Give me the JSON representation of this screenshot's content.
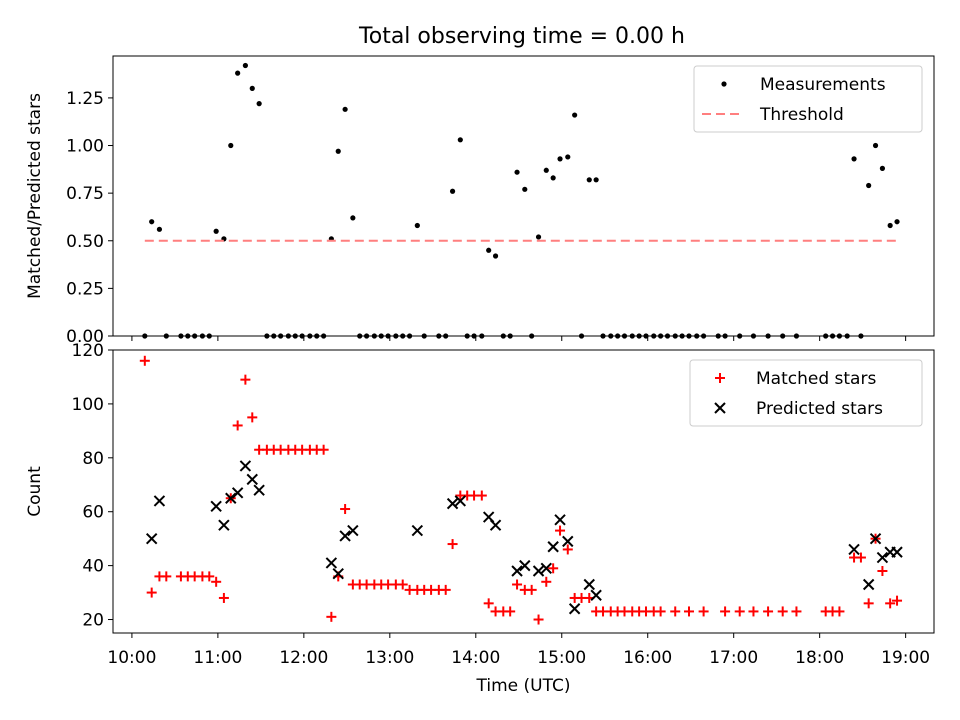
{
  "colors": {
    "matched": "#ff0000",
    "predicted": "#000000",
    "measurement": "#000000",
    "threshold": "#ff7f7f"
  },
  "chart_data": [
    {
      "type": "scatter",
      "title": "Total observing time = 0.00 h",
      "xlabel": "",
      "ylabel": "Matched/Predicted stars",
      "xlim": [
        9.78,
        19.33
      ],
      "ylim": [
        0,
        1.47
      ],
      "yticks": [
        0.0,
        0.25,
        0.5,
        0.75,
        1.0,
        1.25
      ],
      "ytick_labels": [
        "0.00",
        "0.25",
        "0.50",
        "0.75",
        "1.00",
        "1.25"
      ],
      "legend": {
        "placement": "upper right",
        "entries": [
          "Measurements",
          "Threshold"
        ]
      },
      "grid": false,
      "series": [
        {
          "name": "Measurements",
          "marker": "dot",
          "points": [
            [
              10.15,
              0
            ],
            [
              10.23,
              0.6
            ],
            [
              10.32,
              0.56
            ],
            [
              10.4,
              0
            ],
            [
              10.57,
              0
            ],
            [
              10.65,
              0
            ],
            [
              10.73,
              0
            ],
            [
              10.82,
              0
            ],
            [
              10.9,
              0
            ],
            [
              10.98,
              0.55
            ],
            [
              11.07,
              0.51
            ],
            [
              11.15,
              1.0
            ],
            [
              11.23,
              1.38
            ],
            [
              11.32,
              1.42
            ],
            [
              11.4,
              1.3
            ],
            [
              11.48,
              1.22
            ],
            [
              11.57,
              0
            ],
            [
              11.65,
              0
            ],
            [
              11.73,
              0
            ],
            [
              11.82,
              0
            ],
            [
              11.9,
              0
            ],
            [
              11.98,
              0
            ],
            [
              12.07,
              0
            ],
            [
              12.15,
              0
            ],
            [
              12.23,
              0
            ],
            [
              12.32,
              0.51
            ],
            [
              12.4,
              0.97
            ],
            [
              12.48,
              1.19
            ],
            [
              12.57,
              0.62
            ],
            [
              12.65,
              0
            ],
            [
              12.73,
              0
            ],
            [
              12.82,
              0
            ],
            [
              12.9,
              0
            ],
            [
              12.98,
              0
            ],
            [
              13.07,
              0
            ],
            [
              13.15,
              0
            ],
            [
              13.23,
              0
            ],
            [
              13.32,
              0.58
            ],
            [
              13.4,
              0
            ],
            [
              13.57,
              0
            ],
            [
              13.65,
              0
            ],
            [
              13.73,
              0.76
            ],
            [
              13.82,
              1.03
            ],
            [
              13.9,
              0
            ],
            [
              13.98,
              0
            ],
            [
              14.07,
              0
            ],
            [
              14.15,
              0.45
            ],
            [
              14.23,
              0.42
            ],
            [
              14.32,
              0
            ],
            [
              14.4,
              0
            ],
            [
              14.48,
              0.86
            ],
            [
              14.57,
              0.77
            ],
            [
              14.65,
              0
            ],
            [
              14.73,
              0.52
            ],
            [
              14.82,
              0.87
            ],
            [
              14.9,
              0.83
            ],
            [
              14.98,
              0.93
            ],
            [
              15.07,
              0.94
            ],
            [
              15.15,
              1.16
            ],
            [
              15.23,
              0
            ],
            [
              15.32,
              0.82
            ],
            [
              15.4,
              0.82
            ],
            [
              15.48,
              0
            ],
            [
              15.57,
              0
            ],
            [
              15.65,
              0
            ],
            [
              15.73,
              0
            ],
            [
              15.82,
              0
            ],
            [
              15.9,
              0
            ],
            [
              15.98,
              0
            ],
            [
              16.07,
              0
            ],
            [
              16.15,
              0
            ],
            [
              16.23,
              0
            ],
            [
              16.32,
              0
            ],
            [
              16.4,
              0
            ],
            [
              16.48,
              0
            ],
            [
              16.57,
              0
            ],
            [
              16.65,
              0
            ],
            [
              16.82,
              0
            ],
            [
              16.9,
              0
            ],
            [
              17.07,
              0
            ],
            [
              17.23,
              0
            ],
            [
              17.4,
              0
            ],
            [
              17.57,
              0
            ],
            [
              17.73,
              0
            ],
            [
              18.07,
              0
            ],
            [
              18.15,
              0
            ],
            [
              18.23,
              0
            ],
            [
              18.32,
              0
            ],
            [
              18.4,
              0.93
            ],
            [
              18.48,
              0
            ],
            [
              18.57,
              0.79
            ],
            [
              18.65,
              1.0
            ],
            [
              18.73,
              0.88
            ],
            [
              18.82,
              0.58
            ],
            [
              18.9,
              0.6
            ]
          ]
        },
        {
          "name": "Threshold",
          "style": "dashed",
          "points": [
            [
              10.15,
              0.5
            ],
            [
              18.9,
              0.5
            ]
          ]
        }
      ]
    },
    {
      "type": "scatter",
      "title": "",
      "xlabel": "Time (UTC)",
      "ylabel": "Count",
      "xlim": [
        9.78,
        19.33
      ],
      "ylim": [
        15,
        120
      ],
      "yticks": [
        20,
        40,
        60,
        80,
        100,
        120
      ],
      "ytick_labels": [
        "20",
        "40",
        "60",
        "80",
        "100",
        "120"
      ],
      "xticks": [
        10,
        11,
        12,
        13,
        14,
        15,
        16,
        17,
        18,
        19
      ],
      "xtick_labels": [
        "10:00",
        "11:00",
        "12:00",
        "13:00",
        "14:00",
        "15:00",
        "16:00",
        "17:00",
        "18:00",
        "19:00"
      ],
      "legend": {
        "placement": "upper right",
        "entries": [
          "Matched stars",
          "Predicted stars"
        ]
      },
      "grid": false,
      "series": [
        {
          "name": "Matched stars",
          "marker": "plus",
          "points": [
            [
              10.15,
              116
            ],
            [
              10.23,
              30
            ],
            [
              10.32,
              36
            ],
            [
              10.4,
              36
            ],
            [
              10.57,
              36
            ],
            [
              10.65,
              36
            ],
            [
              10.73,
              36
            ],
            [
              10.82,
              36
            ],
            [
              10.9,
              36
            ],
            [
              10.98,
              34
            ],
            [
              11.07,
              28
            ],
            [
              11.15,
              65
            ],
            [
              11.23,
              92
            ],
            [
              11.32,
              109
            ],
            [
              11.4,
              95
            ],
            [
              11.48,
              83
            ],
            [
              11.57,
              83
            ],
            [
              11.65,
              83
            ],
            [
              11.73,
              83
            ],
            [
              11.82,
              83
            ],
            [
              11.9,
              83
            ],
            [
              11.98,
              83
            ],
            [
              12.07,
              83
            ],
            [
              12.15,
              83
            ],
            [
              12.23,
              83
            ],
            [
              12.32,
              21
            ],
            [
              12.4,
              36
            ],
            [
              12.48,
              61
            ],
            [
              12.57,
              33
            ],
            [
              12.65,
              33
            ],
            [
              12.73,
              33
            ],
            [
              12.82,
              33
            ],
            [
              12.9,
              33
            ],
            [
              12.98,
              33
            ],
            [
              13.07,
              33
            ],
            [
              13.15,
              33
            ],
            [
              13.23,
              31
            ],
            [
              13.32,
              31
            ],
            [
              13.4,
              31
            ],
            [
              13.48,
              31
            ],
            [
              13.57,
              31
            ],
            [
              13.65,
              31
            ],
            [
              13.73,
              48
            ],
            [
              13.82,
              66
            ],
            [
              13.9,
              66
            ],
            [
              13.98,
              66
            ],
            [
              14.07,
              66
            ],
            [
              14.15,
              26
            ],
            [
              14.23,
              23
            ],
            [
              14.32,
              23
            ],
            [
              14.4,
              23
            ],
            [
              14.48,
              33
            ],
            [
              14.57,
              31
            ],
            [
              14.65,
              31
            ],
            [
              14.73,
              20
            ],
            [
              14.82,
              34
            ],
            [
              14.9,
              39
            ],
            [
              14.98,
              53
            ],
            [
              15.07,
              46
            ],
            [
              15.15,
              28
            ],
            [
              15.23,
              28
            ],
            [
              15.32,
              28
            ],
            [
              15.4,
              23
            ],
            [
              15.48,
              23
            ],
            [
              15.57,
              23
            ],
            [
              15.65,
              23
            ],
            [
              15.73,
              23
            ],
            [
              15.82,
              23
            ],
            [
              15.9,
              23
            ],
            [
              15.98,
              23
            ],
            [
              16.07,
              23
            ],
            [
              16.15,
              23
            ],
            [
              16.32,
              23
            ],
            [
              16.48,
              23
            ],
            [
              16.65,
              23
            ],
            [
              16.9,
              23
            ],
            [
              17.07,
              23
            ],
            [
              17.23,
              23
            ],
            [
              17.4,
              23
            ],
            [
              17.57,
              23
            ],
            [
              17.73,
              23
            ],
            [
              18.07,
              23
            ],
            [
              18.15,
              23
            ],
            [
              18.23,
              23
            ],
            [
              18.4,
              43
            ],
            [
              18.48,
              43
            ],
            [
              18.57,
              26
            ],
            [
              18.65,
              50
            ],
            [
              18.73,
              38
            ],
            [
              18.82,
              26
            ],
            [
              18.9,
              27
            ]
          ]
        },
        {
          "name": "Predicted stars",
          "marker": "x",
          "points": [
            [
              10.23,
              50
            ],
            [
              10.32,
              64
            ],
            [
              10.98,
              62
            ],
            [
              11.07,
              55
            ],
            [
              11.15,
              65
            ],
            [
              11.23,
              67
            ],
            [
              11.32,
              77
            ],
            [
              11.4,
              72
            ],
            [
              11.48,
              68
            ],
            [
              12.32,
              41
            ],
            [
              12.4,
              37
            ],
            [
              12.48,
              51
            ],
            [
              12.57,
              53
            ],
            [
              13.32,
              53
            ],
            [
              13.73,
              63
            ],
            [
              13.82,
              64
            ],
            [
              14.15,
              58
            ],
            [
              14.23,
              55
            ],
            [
              14.48,
              38
            ],
            [
              14.57,
              40
            ],
            [
              14.73,
              38
            ],
            [
              14.82,
              39
            ],
            [
              14.9,
              47
            ],
            [
              14.98,
              57
            ],
            [
              15.07,
              49
            ],
            [
              15.15,
              24
            ],
            [
              15.32,
              33
            ],
            [
              15.4,
              29
            ],
            [
              18.4,
              46
            ],
            [
              18.57,
              33
            ],
            [
              18.65,
              50
            ],
            [
              18.73,
              43
            ],
            [
              18.82,
              45
            ],
            [
              18.9,
              45
            ]
          ]
        }
      ]
    }
  ]
}
